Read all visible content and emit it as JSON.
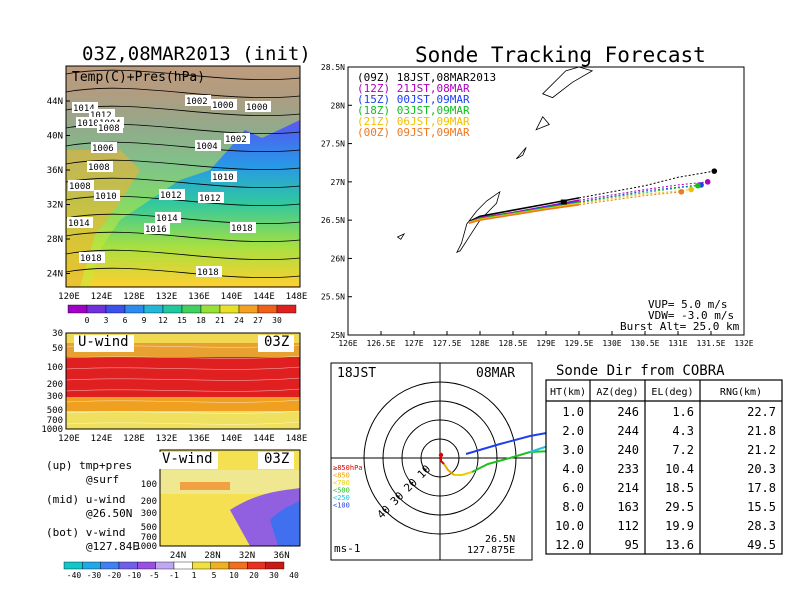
{
  "map_panel": {
    "title": "03Z,08MAR2013 (init)",
    "overlay_label": "Temp(C)+Pres(hPa)",
    "lat_ticks": [
      "44N",
      "40N",
      "36N",
      "32N",
      "28N",
      "24N"
    ],
    "lon_ticks": [
      "120E",
      "124E",
      "128E",
      "132E",
      "136E",
      "140E",
      "144E",
      "148E"
    ],
    "isobar_labels": [
      "1002",
      "1000",
      "1000",
      "1014",
      "1012",
      "1010",
      "1004",
      "1008",
      "1006",
      "1002",
      "1004",
      "1008",
      "1010",
      "1008",
      "1012",
      "1010",
      "1012",
      "1014",
      "1016",
      "1018",
      "1018",
      "1014",
      "1018"
    ],
    "colorbar_ticks": [
      "0",
      "3",
      "6",
      "9",
      "12",
      "15",
      "18",
      "21",
      "24",
      "27",
      "30"
    ],
    "colorbar_colors": [
      "#a000c8",
      "#7030e0",
      "#3c50f0",
      "#2a8cf0",
      "#22b6d8",
      "#20c8a0",
      "#40d060",
      "#98e038",
      "#e8e028",
      "#f4a020",
      "#f06018",
      "#e02020"
    ]
  },
  "uwind_panel": {
    "label": "U-wind",
    "time": "03Z",
    "p_ticks": [
      "30",
      "50",
      "100",
      "200",
      "300",
      "500",
      "700",
      "1000"
    ],
    "lon_ticks": [
      "120E",
      "124E",
      "128E",
      "132E",
      "136E",
      "140E",
      "144E",
      "148E"
    ]
  },
  "vwind_panel": {
    "label": "V-wind",
    "time": "03Z",
    "p_ticks": [
      "30",
      "50",
      "100",
      "200",
      "300",
      "500",
      "700",
      "1000"
    ],
    "lat_ticks": [
      "24N",
      "28N",
      "32N",
      "36N"
    ],
    "colorbar_ticks": [
      "-40",
      "-30",
      "-20",
      "-10",
      "-5",
      "-1",
      "1",
      "5",
      "10",
      "20",
      "30",
      "40"
    ],
    "colorbar_colors": [
      "#10c8c8",
      "#20a8e8",
      "#4080f0",
      "#7060e8",
      "#9850e0",
      "#c0a8f0",
      "#ffffff",
      "#f0e040",
      "#f0b020",
      "#f07020",
      "#e83020",
      "#c81818"
    ]
  },
  "legend_text": [
    {
      "label": "(up) tmp+pres",
      "sub": "@surf"
    },
    {
      "label": "(mid) u-wind",
      "sub": "@26.50N"
    },
    {
      "label": "(bot) v-wind",
      "sub": "@127.84E"
    }
  ],
  "tracking_panel": {
    "title": "Sonde Tracking Forecast",
    "lat_ticks": [
      "28.5N",
      "28N",
      "27.5N",
      "27N",
      "26.5N",
      "26N",
      "25.5N",
      "25N"
    ],
    "lon_ticks": [
      "126E",
      "126.5E",
      "127E",
      "127.5E",
      "128E",
      "128.5E",
      "129E",
      "129.5E",
      "130E",
      "130.5E",
      "131E",
      "131.5E",
      "132E"
    ],
    "params": [
      "VUP= 5.0 m/s",
      "VDW= -3.0 m/s",
      "Burst Alt= 25.0 km"
    ]
  },
  "polar_panel": {
    "time_label": "18JST",
    "date_label": "08MAR",
    "ring_labels": [
      "10",
      "20",
      "30",
      "40"
    ],
    "unit": "ms-1",
    "location": [
      "26.5N",
      "127.875E"
    ],
    "pressure_legend": [
      {
        "label": "≥850hPa",
        "color": "#e00000"
      },
      {
        "label": "<850",
        "color": "#f0a000"
      },
      {
        "label": "<700",
        "color": "#e8d000"
      },
      {
        "label": "<500",
        "color": "#20c020"
      },
      {
        "label": "<250",
        "color": "#20c0e0"
      },
      {
        "label": "<100",
        "color": "#2040f0"
      }
    ]
  },
  "cobra_table": {
    "title": "Sonde Dir from COBRA",
    "headers": [
      "HT(km)",
      "AZ(deg)",
      "EL(deg)",
      "RNG(km)"
    ],
    "rows": [
      [
        "1.0",
        "246",
        "1.6",
        "22.7"
      ],
      [
        "2.0",
        "244",
        "4.3",
        "21.8"
      ],
      [
        "3.0",
        "240",
        "7.2",
        "21.2"
      ],
      [
        "4.0",
        "233",
        "10.4",
        "20.3"
      ],
      [
        "6.0",
        "214",
        "18.5",
        "17.8"
      ],
      [
        "8.0",
        "163",
        "29.5",
        "15.5"
      ],
      [
        "10.0",
        "112",
        "19.9",
        "28.3"
      ],
      [
        "12.0",
        "95",
        "13.6",
        "49.5"
      ]
    ]
  },
  "chart_data": [
    {
      "type": "line",
      "title": "Sonde Tracking Forecast",
      "xlabel": "",
      "ylabel": "",
      "xlim": [
        126,
        132
      ],
      "ylim": [
        25,
        28.5
      ],
      "series": [
        {
          "name": "(09Z) 18JST,08MAR2013",
          "color": "#000000",
          "x": [
            127.83,
            128.0,
            128.5,
            129.0,
            129.5,
            130.0,
            130.5,
            131.0,
            131.55
          ],
          "y": [
            26.48,
            26.55,
            26.63,
            26.71,
            26.79,
            26.87,
            26.95,
            27.06,
            27.14
          ]
        },
        {
          "name": "(12Z) 21JST,08MAR",
          "color": "#b000c0",
          "x": [
            127.83,
            128.0,
            128.5,
            129.0,
            129.5,
            130.0,
            130.5,
            131.0,
            131.45
          ],
          "y": [
            26.47,
            26.53,
            26.6,
            26.68,
            26.76,
            26.83,
            26.9,
            26.96,
            27.0
          ]
        },
        {
          "name": "(15Z) 00JST,09MAR",
          "color": "#2040f0",
          "x": [
            127.83,
            128.0,
            128.5,
            129.0,
            129.5,
            130.0,
            130.5,
            131.0,
            131.35
          ],
          "y": [
            26.47,
            26.52,
            26.59,
            26.67,
            26.74,
            26.81,
            26.88,
            26.93,
            26.96
          ]
        },
        {
          "name": "(18Z) 03JST,09MAR",
          "color": "#10c020",
          "x": [
            127.83,
            128.0,
            128.5,
            129.0,
            129.5,
            130.0,
            130.5,
            131.0,
            131.3
          ],
          "y": [
            26.47,
            26.52,
            26.59,
            26.66,
            26.73,
            26.8,
            26.86,
            26.92,
            26.95
          ]
        },
        {
          "name": "(21Z) 06JST,09MAR",
          "color": "#f0c000",
          "x": [
            127.83,
            128.0,
            128.5,
            129.0,
            129.5,
            130.0,
            130.5,
            131.0,
            131.2
          ],
          "y": [
            26.47,
            26.51,
            26.58,
            26.65,
            26.72,
            26.78,
            26.84,
            26.88,
            26.9
          ]
        },
        {
          "name": "(00Z) 09JST,09MAR",
          "color": "#f07820",
          "x": [
            127.83,
            128.0,
            128.5,
            129.0,
            129.5,
            130.0,
            130.5,
            131.05
          ],
          "y": [
            26.46,
            26.5,
            26.57,
            26.64,
            26.7,
            26.76,
            26.82,
            26.87
          ]
        }
      ]
    }
  ]
}
